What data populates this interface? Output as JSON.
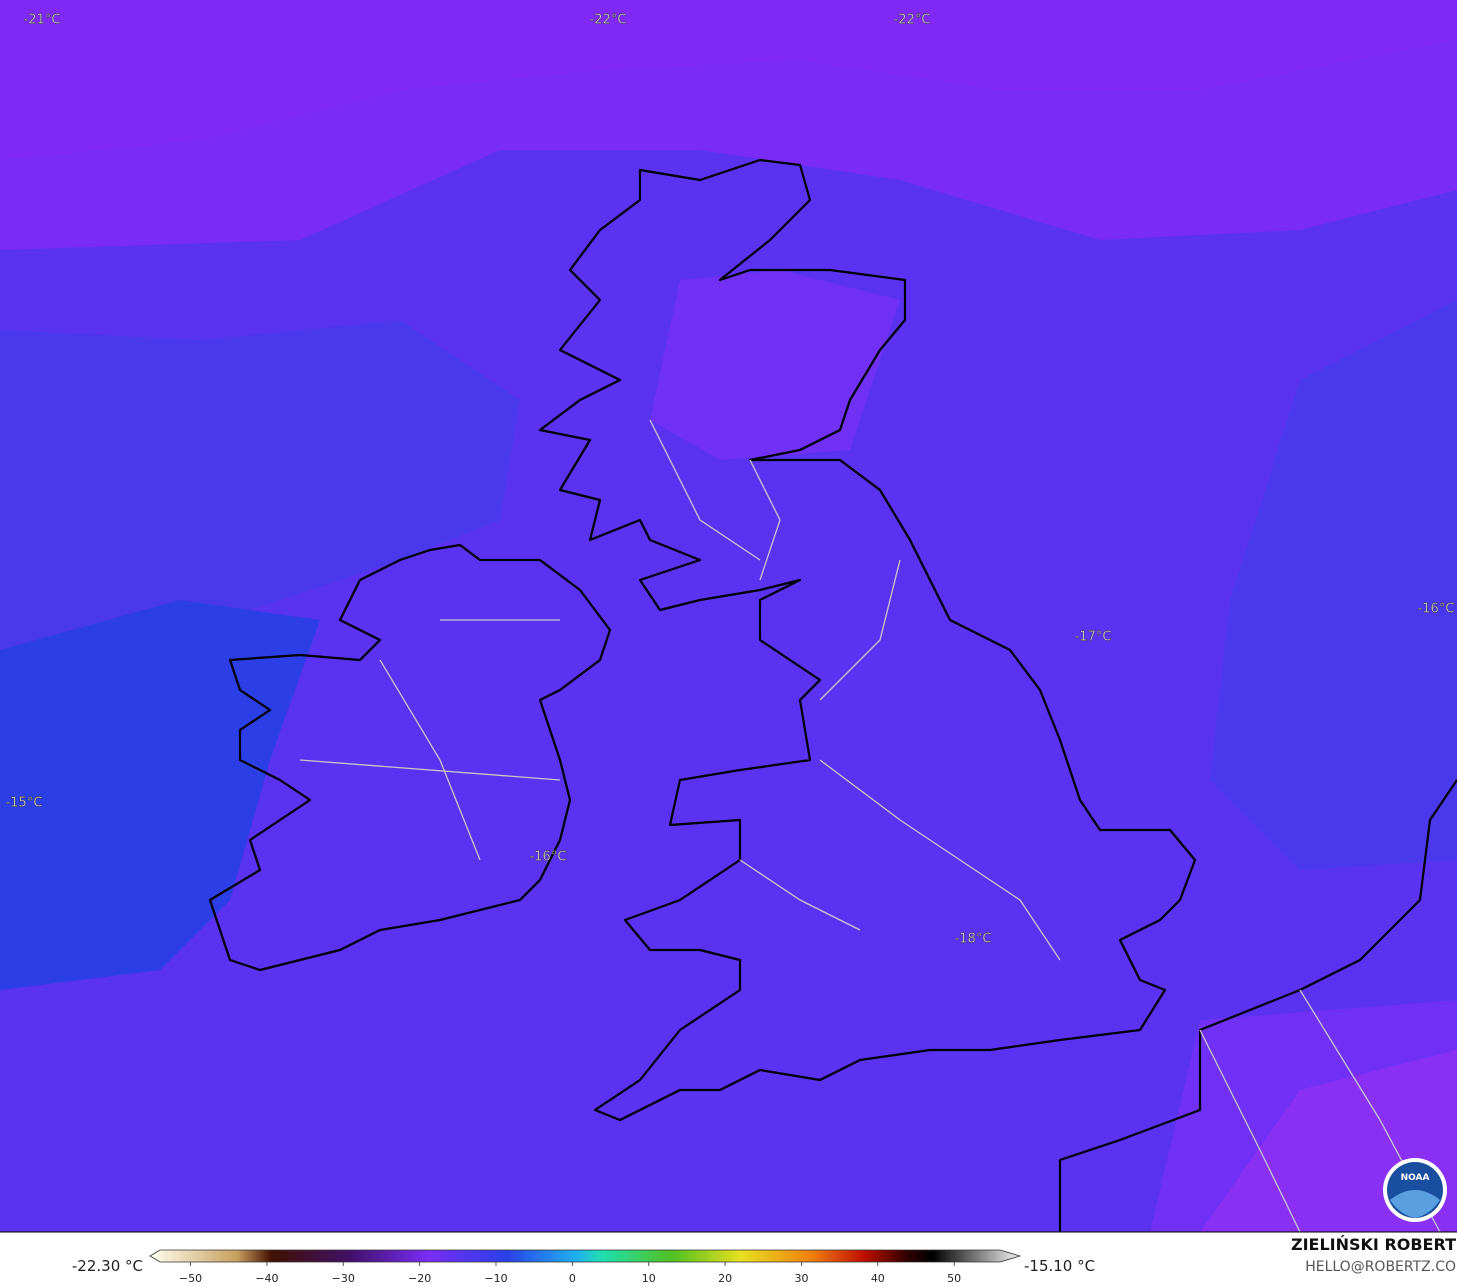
{
  "map": {
    "contour_labels": [
      "-21°C",
      "-22°C",
      "-22°C",
      "-17°C",
      "-16°C",
      "-15°C",
      "-16°C",
      "-18°C"
    ],
    "logo": "NOAA"
  },
  "colorbar": {
    "lim": [
      -54,
      56
    ],
    "ticks": [
      {
        "value": -50,
        "label": "−50"
      },
      {
        "value": -40,
        "label": "−40"
      },
      {
        "value": -30,
        "label": "−30"
      },
      {
        "value": -20,
        "label": "−20"
      },
      {
        "value": -10,
        "label": "−10"
      },
      0,
      10,
      20,
      30,
      40,
      50
    ],
    "min_label": "-22.30 °C",
    "max_label": "-15.10 °C"
  },
  "credits": {
    "name": "ZIELIŃSKI ROBERT",
    "email": "HELLO@ROBERTZ.CO"
  }
}
